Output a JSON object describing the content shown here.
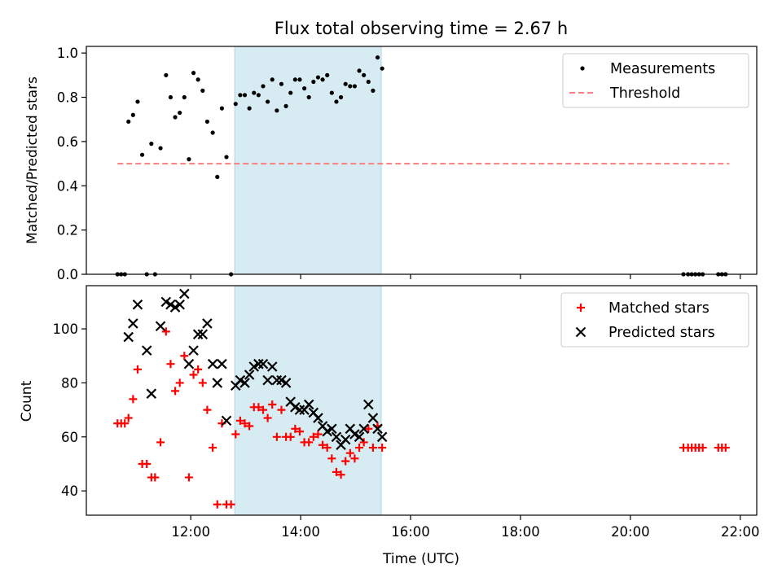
{
  "chart_data": [
    {
      "type": "scatter",
      "title": "Flux total observing time = 2.67 h",
      "xlabel": "",
      "ylabel": "Matched/Predicted stars",
      "ylim": [
        0.0,
        1.03
      ],
      "xlim": [
        "10:06",
        "22:18"
      ],
      "yticks": [
        0.0,
        0.2,
        0.4,
        0.6,
        0.8,
        1.0
      ],
      "ytick_labels": [
        "0.0",
        "0.2",
        "0.4",
        "0.6",
        "0.8",
        "1.0"
      ],
      "shaded_region": {
        "x": [
          "12:48",
          "15:28"
        ],
        "color": "#add8e6"
      },
      "legend_position": "upper right",
      "series": [
        {
          "name": "Measurements",
          "marker": "dot",
          "color": "#000000",
          "points": [
            [
              "10:40",
              0.0
            ],
            [
              "10:44",
              0.0
            ],
            [
              "10:48",
              0.0
            ],
            [
              "10:52",
              0.69
            ],
            [
              "10:57",
              0.72
            ],
            [
              "11:02",
              0.78
            ],
            [
              "11:07",
              0.54
            ],
            [
              "11:12",
              0.0
            ],
            [
              "11:17",
              0.59
            ],
            [
              "11:21",
              0.0
            ],
            [
              "11:27",
              0.57
            ],
            [
              "11:33",
              0.9
            ],
            [
              "11:38",
              0.8
            ],
            [
              "11:43",
              0.71
            ],
            [
              "11:48",
              0.73
            ],
            [
              "11:53",
              0.8
            ],
            [
              "11:58",
              0.52
            ],
            [
              "12:03",
              0.91
            ],
            [
              "12:08",
              0.88
            ],
            [
              "12:13",
              0.83
            ],
            [
              "12:18",
              0.69
            ],
            [
              "12:24",
              0.64
            ],
            [
              "12:29",
              0.44
            ],
            [
              "12:34",
              0.75
            ],
            [
              "12:39",
              0.53
            ],
            [
              "12:44",
              0.0
            ],
            [
              "12:49",
              0.77
            ],
            [
              "12:54",
              0.81
            ],
            [
              "12:59",
              0.81
            ],
            [
              "13:04",
              0.75
            ],
            [
              "13:09",
              0.82
            ],
            [
              "13:14",
              0.81
            ],
            [
              "13:19",
              0.85
            ],
            [
              "13:24",
              0.78
            ],
            [
              "13:29",
              0.88
            ],
            [
              "13:34",
              0.74
            ],
            [
              "13:39",
              0.86
            ],
            [
              "13:44",
              0.76
            ],
            [
              "13:49",
              0.82
            ],
            [
              "13:54",
              0.88
            ],
            [
              "13:59",
              0.88
            ],
            [
              "14:04",
              0.84
            ],
            [
              "14:09",
              0.8
            ],
            [
              "14:14",
              0.87
            ],
            [
              "14:19",
              0.89
            ],
            [
              "14:24",
              0.88
            ],
            [
              "14:29",
              0.9
            ],
            [
              "14:34",
              0.82
            ],
            [
              "14:39",
              0.78
            ],
            [
              "14:44",
              0.8
            ],
            [
              "14:49",
              0.86
            ],
            [
              "14:54",
              0.85
            ],
            [
              "14:59",
              0.85
            ],
            [
              "15:04",
              0.92
            ],
            [
              "15:09",
              0.9
            ],
            [
              "15:14",
              0.87
            ],
            [
              "15:19",
              0.83
            ],
            [
              "15:24",
              0.98
            ],
            [
              "15:29",
              0.93
            ],
            [
              "20:58",
              0.0
            ],
            [
              "21:03",
              0.0
            ],
            [
              "21:07",
              0.0
            ],
            [
              "21:11",
              0.0
            ],
            [
              "21:15",
              0.0
            ],
            [
              "21:19",
              0.0
            ],
            [
              "21:36",
              0.0
            ],
            [
              "21:40",
              0.0
            ],
            [
              "21:44",
              0.0
            ]
          ]
        },
        {
          "name": "Threshold",
          "marker": "dashed-line",
          "color": "#ff7f7f",
          "points": [
            [
              "10:40",
              0.5
            ],
            [
              "21:48",
              0.5
            ]
          ]
        }
      ]
    },
    {
      "type": "scatter",
      "title": "",
      "xlabel": "Time (UTC)",
      "ylabel": "Count",
      "ylim": [
        31,
        116
      ],
      "xlim": [
        "10:06",
        "22:18"
      ],
      "yticks": [
        40,
        60,
        80,
        100
      ],
      "ytick_labels": [
        "40",
        "60",
        "80",
        "100"
      ],
      "xticks": [
        "12:00",
        "14:00",
        "16:00",
        "18:00",
        "20:00",
        "22:00"
      ],
      "xtick_labels": [
        "12:00",
        "14:00",
        "16:00",
        "18:00",
        "20:00",
        "22:00"
      ],
      "shaded_region": {
        "x": [
          "12:48",
          "15:28"
        ],
        "color": "#add8e6"
      },
      "legend_position": "upper right",
      "series": [
        {
          "name": "Matched stars",
          "marker": "plus",
          "color": "#ff0000",
          "points": [
            [
              "10:40",
              65
            ],
            [
              "10:44",
              65
            ],
            [
              "10:48",
              65
            ],
            [
              "10:52",
              67
            ],
            [
              "10:57",
              74
            ],
            [
              "11:02",
              85
            ],
            [
              "11:07",
              50
            ],
            [
              "11:12",
              50
            ],
            [
              "11:17",
              45
            ],
            [
              "11:21",
              45
            ],
            [
              "11:27",
              58
            ],
            [
              "11:33",
              99
            ],
            [
              "11:38",
              87
            ],
            [
              "11:43",
              77
            ],
            [
              "11:48",
              80
            ],
            [
              "11:53",
              90
            ],
            [
              "11:58",
              45
            ],
            [
              "12:03",
              83
            ],
            [
              "12:08",
              85
            ],
            [
              "12:13",
              80
            ],
            [
              "12:18",
              70
            ],
            [
              "12:24",
              56
            ],
            [
              "12:29",
              35
            ],
            [
              "12:34",
              65
            ],
            [
              "12:39",
              35
            ],
            [
              "12:44",
              35
            ],
            [
              "12:49",
              61
            ],
            [
              "12:54",
              66
            ],
            [
              "12:59",
              65
            ],
            [
              "13:04",
              64
            ],
            [
              "13:09",
              71
            ],
            [
              "13:14",
              71
            ],
            [
              "13:19",
              70
            ],
            [
              "13:24",
              67
            ],
            [
              "13:29",
              72
            ],
            [
              "13:34",
              60
            ],
            [
              "13:39",
              70
            ],
            [
              "13:44",
              60
            ],
            [
              "13:49",
              60
            ],
            [
              "13:54",
              63
            ],
            [
              "13:59",
              62
            ],
            [
              "14:04",
              58
            ],
            [
              "14:09",
              58
            ],
            [
              "14:14",
              60
            ],
            [
              "14:19",
              61
            ],
            [
              "14:24",
              57
            ],
            [
              "14:29",
              56
            ],
            [
              "14:34",
              52
            ],
            [
              "14:39",
              47
            ],
            [
              "14:44",
              46
            ],
            [
              "14:49",
              51
            ],
            [
              "14:54",
              54
            ],
            [
              "14:59",
              52
            ],
            [
              "15:04",
              56
            ],
            [
              "15:09",
              58
            ],
            [
              "15:14",
              63
            ],
            [
              "15:19",
              56
            ],
            [
              "15:24",
              64
            ],
            [
              "15:29",
              56
            ],
            [
              "20:58",
              56
            ],
            [
              "21:03",
              56
            ],
            [
              "21:07",
              56
            ],
            [
              "21:11",
              56
            ],
            [
              "21:15",
              56
            ],
            [
              "21:19",
              56
            ],
            [
              "21:36",
              56
            ],
            [
              "21:40",
              56
            ],
            [
              "21:44",
              56
            ]
          ]
        },
        {
          "name": "Predicted stars",
          "marker": "x",
          "color": "#000000",
          "points": [
            [
              "10:52",
              97
            ],
            [
              "10:57",
              102
            ],
            [
              "11:02",
              109
            ],
            [
              "11:12",
              92
            ],
            [
              "11:17",
              76
            ],
            [
              "11:27",
              101
            ],
            [
              "11:33",
              110
            ],
            [
              "11:38",
              109
            ],
            [
              "11:43",
              108
            ],
            [
              "11:48",
              109
            ],
            [
              "11:53",
              113
            ],
            [
              "11:58",
              87
            ],
            [
              "12:03",
              92
            ],
            [
              "12:08",
              98
            ],
            [
              "12:13",
              98
            ],
            [
              "12:18",
              102
            ],
            [
              "12:24",
              87
            ],
            [
              "12:29",
              80
            ],
            [
              "12:34",
              87
            ],
            [
              "12:39",
              66
            ],
            [
              "12:49",
              79
            ],
            [
              "12:54",
              81
            ],
            [
              "12:59",
              80
            ],
            [
              "13:04",
              83
            ],
            [
              "13:09",
              86
            ],
            [
              "13:14",
              87
            ],
            [
              "13:19",
              87
            ],
            [
              "13:24",
              81
            ],
            [
              "13:29",
              86
            ],
            [
              "13:34",
              81
            ],
            [
              "13:39",
              81
            ],
            [
              "13:44",
              80
            ],
            [
              "13:49",
              73
            ],
            [
              "13:54",
              71
            ],
            [
              "13:59",
              70
            ],
            [
              "14:04",
              70
            ],
            [
              "14:09",
              72
            ],
            [
              "14:14",
              69
            ],
            [
              "14:19",
              67
            ],
            [
              "14:24",
              64
            ],
            [
              "14:29",
              62
            ],
            [
              "14:34",
              63
            ],
            [
              "14:39",
              60
            ],
            [
              "14:44",
              57
            ],
            [
              "14:49",
              59
            ],
            [
              "14:54",
              63
            ],
            [
              "14:59",
              61
            ],
            [
              "15:04",
              60
            ],
            [
              "15:09",
              63
            ],
            [
              "15:14",
              72
            ],
            [
              "15:19",
              67
            ],
            [
              "15:24",
              63
            ],
            [
              "15:29",
              60
            ]
          ]
        }
      ]
    }
  ]
}
